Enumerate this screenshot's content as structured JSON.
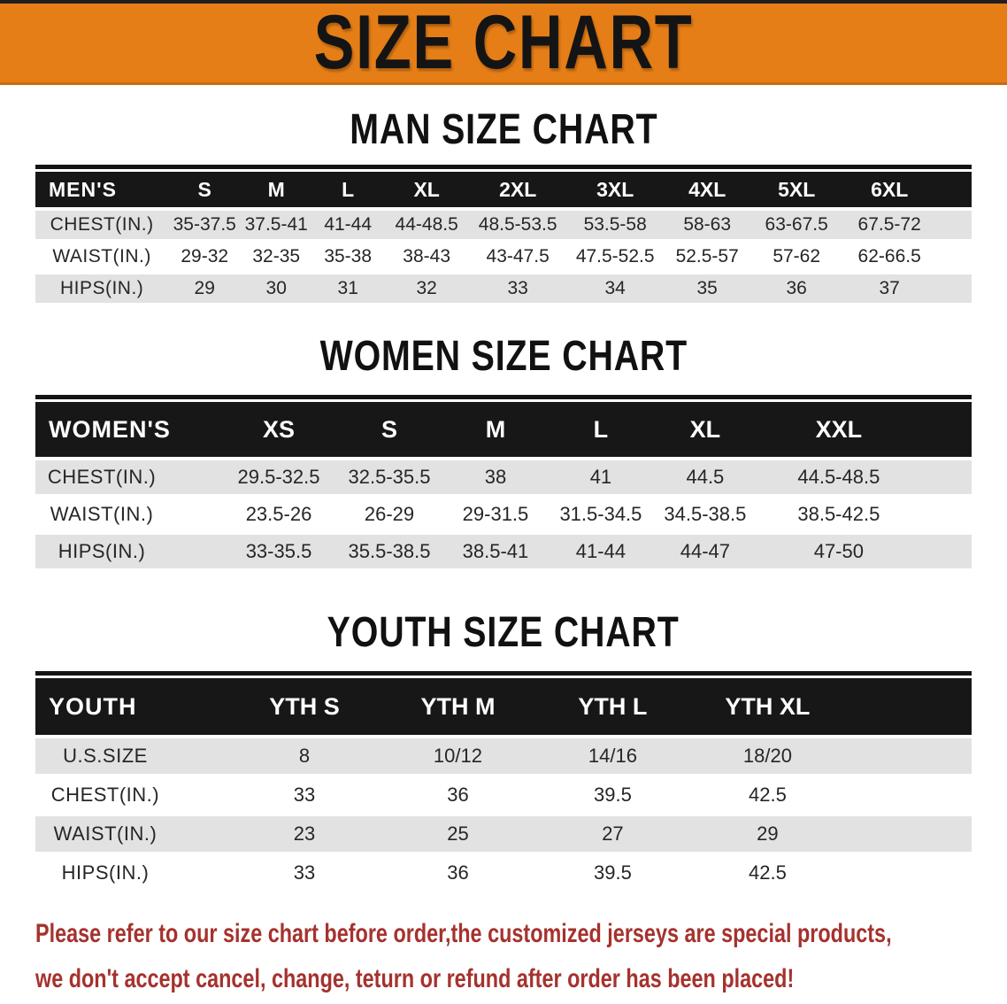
{
  "banner": {
    "title": "SIZE CHART"
  },
  "sections": [
    {
      "heading": "MAN SIZE CHART",
      "table": {
        "label": "MEN'S",
        "columns": [
          "S",
          "M",
          "L",
          "XL",
          "2XL",
          "3XL",
          "4XL",
          "5XL",
          "6XL"
        ],
        "rows": [
          {
            "label": "CHEST(IN.)",
            "values": [
              "35-37.5",
              "37.5-41",
              "41-44",
              "44-48.5",
              "48.5-53.5",
              "53.5-58",
              "58-63",
              "63-67.5",
              "67.5-72"
            ]
          },
          {
            "label": "WAIST(IN.)",
            "values": [
              "29-32",
              "32-35",
              "35-38",
              "38-43",
              "43-47.5",
              "47.5-52.5",
              "52.5-57",
              "57-62",
              "62-66.5"
            ]
          },
          {
            "label": "HIPS(IN.)",
            "values": [
              "29",
              "30",
              "31",
              "32",
              "33",
              "34",
              "35",
              "36",
              "37"
            ]
          }
        ]
      }
    },
    {
      "heading": "WOMEN SIZE CHART",
      "table": {
        "label": "WOMEN'S",
        "columns": [
          "XS",
          "S",
          "M",
          "L",
          "XL",
          "XXL"
        ],
        "rows": [
          {
            "label": "CHEST(IN.)",
            "values": [
              "29.5-32.5",
              "32.5-35.5",
              "38",
              "41",
              "44.5",
              "44.5-48.5"
            ]
          },
          {
            "label": "WAIST(IN.)",
            "values": [
              "23.5-26",
              "26-29",
              "29-31.5",
              "31.5-34.5",
              "34.5-38.5",
              "38.5-42.5"
            ]
          },
          {
            "label": "HIPS(IN.)",
            "values": [
              "33-35.5",
              "35.5-38.5",
              "38.5-41",
              "41-44",
              "44-47",
              "47-50"
            ]
          }
        ]
      }
    },
    {
      "heading": "YOUTH SIZE CHART",
      "table": {
        "label": "YOUTH",
        "columns": [
          "YTH S",
          "YTH M",
          "YTH L",
          "YTH XL"
        ],
        "rows": [
          {
            "label": "U.S.SIZE",
            "values": [
              "8",
              "10/12",
              "14/16",
              "18/20"
            ]
          },
          {
            "label": "CHEST(IN.)",
            "values": [
              "33",
              "36",
              "39.5",
              "42.5"
            ]
          },
          {
            "label": "WAIST(IN.)",
            "values": [
              "23",
              "25",
              "27",
              "29"
            ]
          },
          {
            "label": "HIPS(IN.)",
            "values": [
              "33",
              "36",
              "39.5",
              "42.5"
            ]
          }
        ]
      }
    }
  ],
  "footer": {
    "line1": "Please refer to our size chart before order,the customized jerseys are special products,",
    "line2": "we don't accept cancel, change, teturn or refund after order has been placed!"
  },
  "colors": {
    "banner_orange": "#E67E17",
    "banner_orange_dark": "#C96A10",
    "table_header_black": "#171717",
    "row_gray": "#E2E2E2",
    "footer_red": "#A5322E"
  }
}
